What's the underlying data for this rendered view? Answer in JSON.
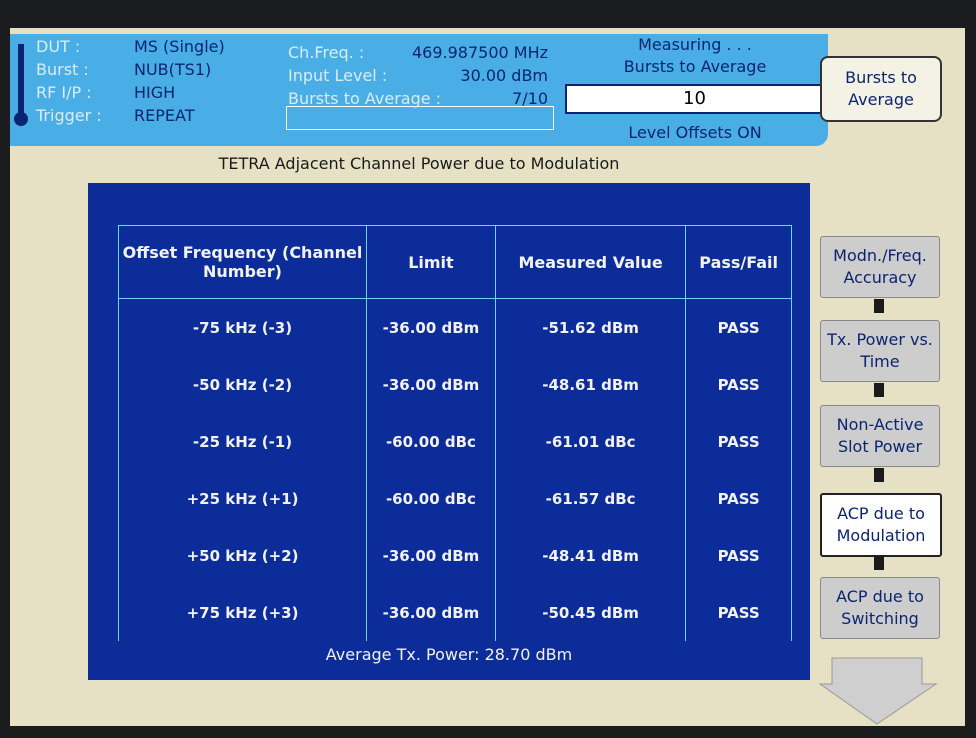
{
  "status": {
    "left": [
      {
        "label": "DUT :",
        "value": "MS (Single)"
      },
      {
        "label": "Burst :",
        "value": "NUB(TS1)"
      },
      {
        "label": "RF I/P :",
        "value": "HIGH"
      },
      {
        "label": "Trigger :",
        "value": "REPEAT"
      }
    ],
    "middle": [
      {
        "label": "Ch.Freq. :",
        "value": "469.987500 MHz"
      },
      {
        "label": "Input Level :",
        "value": "30.00 dBm"
      },
      {
        "label": "Bursts to Average :",
        "value": "7/10"
      }
    ],
    "state": "Measuring . . .",
    "entry_label": "Bursts to Average",
    "entry_value": "10",
    "offsets": "Level Offsets ON"
  },
  "softkey": "Bursts to Average",
  "title": "TETRA Adjacent Channel Power due to Modulation",
  "table": {
    "headers": [
      "Offset Frequency (Channel Number)",
      "Limit",
      "Measured Value",
      "Pass/Fail"
    ],
    "rows": [
      [
        "-75 kHz (-3)",
        "-36.00 dBm",
        "-51.62 dBm",
        "PASS"
      ],
      [
        "-50 kHz (-2)",
        "-36.00 dBm",
        "-48.61 dBm",
        "PASS"
      ],
      [
        "-25 kHz (-1)",
        "-60.00 dBc",
        "-61.01 dBc",
        "PASS"
      ],
      [
        "+25 kHz (+1)",
        "-60.00 dBc",
        "-61.57 dBc",
        "PASS"
      ],
      [
        "+50 kHz (+2)",
        "-36.00 dBm",
        "-48.41 dBm",
        "PASS"
      ],
      [
        "+75 kHz (+3)",
        "-36.00 dBm",
        "-50.45 dBm",
        "PASS"
      ]
    ]
  },
  "footer": "Average Tx. Power: 28.70 dBm",
  "menu": [
    "Modn./Freq. Accuracy",
    "Tx. Power vs. Time",
    "Non-Active Slot Power",
    "ACP due to Modulation",
    "ACP due to Switching"
  ]
}
